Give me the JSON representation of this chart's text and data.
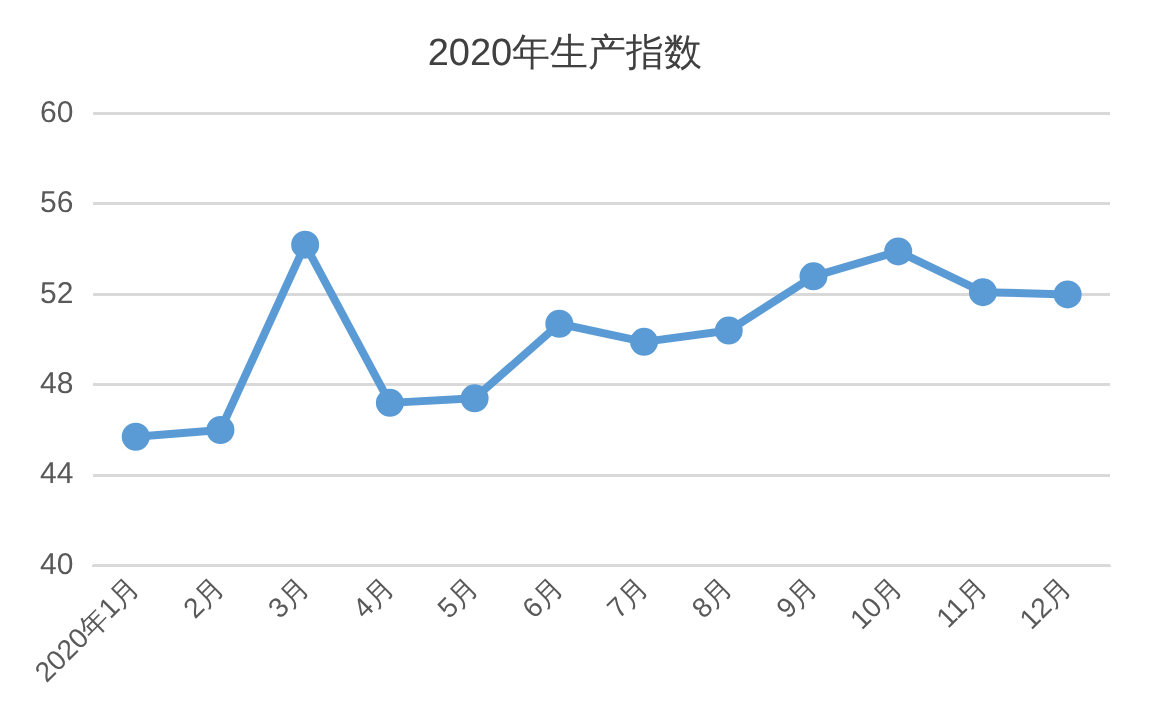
{
  "chart_data": {
    "type": "line",
    "title": "2020年生产指数",
    "categories": [
      "2020年1月",
      "2月",
      "3月",
      "4月",
      "5月",
      "6月",
      "7月",
      "8月",
      "9月",
      "10月",
      "11月",
      "12月"
    ],
    "series": [
      {
        "color": "#5b9bd5",
        "values": [
          45.7,
          46.0,
          54.2,
          47.2,
          47.4,
          50.7,
          49.9,
          50.4,
          52.8,
          53.9,
          52.1,
          52.0
        ]
      }
    ],
    "ylim": [
      40,
      60
    ],
    "yticks": [
      40,
      44,
      48,
      52,
      56,
      60
    ],
    "grid": "y",
    "legend": false,
    "marker": "circle",
    "line_style": "solid"
  }
}
